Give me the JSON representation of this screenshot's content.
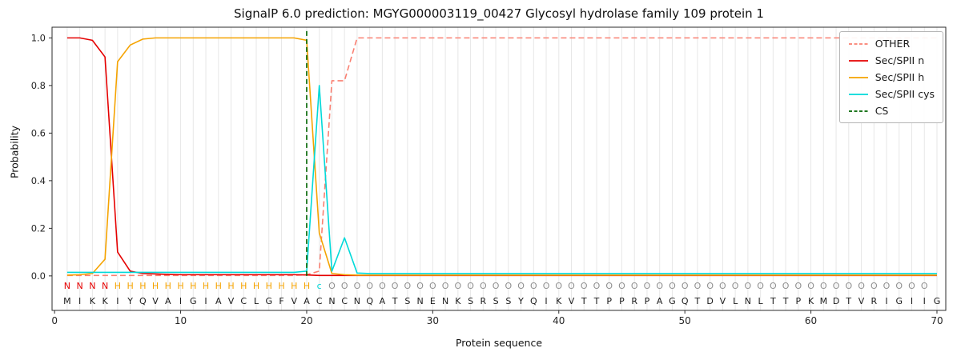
{
  "chart_data": {
    "type": "line",
    "title": "SignalP 6.0 prediction: MGYG000003119_00427 Glycosyl hydrolase family 109 protein 1",
    "xlabel": "Protein sequence",
    "ylabel": "Probability",
    "xlim": [
      -0.2,
      70.7
    ],
    "ylim": [
      -0.145,
      1.045
    ],
    "x_start": 1,
    "x_ticks": [
      0,
      10,
      20,
      30,
      40,
      50,
      60,
      70
    ],
    "y_ticks": [
      0.0,
      0.2,
      0.4,
      0.6,
      0.8,
      1.0
    ],
    "grid": "vertical line per residue",
    "legend_position": "upper right",
    "colors": {
      "grid": "#e7e7e7",
      "spine": "#2b2b2b",
      "tick_label": "#262626",
      "sequence_letters": "#1a1a1a"
    },
    "sequence": "MIKKIYQVAIGIAVCLGFVACNCNQATSNENKSRSSYQIKVTTPPRPAGQTDVLNLTTPKMDTVRIGIIG",
    "annotation": "NNNNHHHHHHHHHHHHHHHHcOOOOOOOOOOOOOOOOOOOOOOOOOOOOOOOOOOOOOOOOOOOOOOOO",
    "annotation_colors": {
      "N": "#e50000",
      "H": "#f5a300",
      "c": "#00d9d9",
      "O": "#8f8f8f"
    },
    "cs_line": {
      "x": 20,
      "color": "#006400",
      "style": "dashed",
      "label": "CS"
    },
    "series": [
      {
        "name": "OTHER",
        "color": "#fa8072",
        "style": "dashed",
        "values": [
          0.002,
          0.002,
          0.002,
          0.002,
          0.002,
          0.002,
          0.002,
          0.002,
          0.002,
          0.002,
          0.002,
          0.002,
          0.002,
          0.002,
          0.002,
          0.002,
          0.002,
          0.002,
          0.002,
          0.005,
          0.02,
          0.82,
          0.82,
          1.0,
          1.0,
          1.0,
          1.0,
          1.0,
          1.0,
          1.0,
          1.0,
          1.0,
          1.0,
          1.0,
          1.0,
          1.0,
          1.0,
          1.0,
          1.0,
          1.0,
          1.0,
          1.0,
          1.0,
          1.0,
          1.0,
          1.0,
          1.0,
          1.0,
          1.0,
          1.0,
          1.0,
          1.0,
          1.0,
          1.0,
          1.0,
          1.0,
          1.0,
          1.0,
          1.0,
          1.0,
          1.0,
          1.0,
          1.0,
          1.0,
          1.0,
          1.0,
          1.0,
          1.0,
          1.0,
          1.0
        ]
      },
      {
        "name": "Sec/SPII n",
        "color": "#e50000",
        "style": "solid",
        "values": [
          1.0,
          1.0,
          0.99,
          0.92,
          0.1,
          0.02,
          0.01,
          0.008,
          0.006,
          0.005,
          0.005,
          0.005,
          0.005,
          0.005,
          0.005,
          0.005,
          0.005,
          0.005,
          0.005,
          0.004,
          0.002,
          0.002,
          0.002,
          0.002,
          0.002,
          0.002,
          0.002,
          0.002,
          0.002,
          0.002,
          0.002,
          0.002,
          0.002,
          0.002,
          0.002,
          0.002,
          0.002,
          0.002,
          0.002,
          0.002,
          0.002,
          0.002,
          0.002,
          0.002,
          0.002,
          0.002,
          0.002,
          0.002,
          0.002,
          0.002,
          0.002,
          0.002,
          0.002,
          0.002,
          0.002,
          0.002,
          0.002,
          0.002,
          0.002,
          0.002,
          0.002,
          0.002,
          0.002,
          0.002,
          0.002,
          0.002,
          0.002,
          0.002,
          0.002,
          0.002
        ]
      },
      {
        "name": "Sec/SPII h",
        "color": "#f5a300",
        "style": "solid",
        "values": [
          0.003,
          0.005,
          0.01,
          0.07,
          0.9,
          0.97,
          0.995,
          1.0,
          1.0,
          1.0,
          1.0,
          1.0,
          1.0,
          1.0,
          1.0,
          1.0,
          1.0,
          1.0,
          1.0,
          0.99,
          0.18,
          0.01,
          0.005,
          0.003,
          0.003,
          0.003,
          0.003,
          0.003,
          0.003,
          0.003,
          0.003,
          0.003,
          0.003,
          0.003,
          0.003,
          0.003,
          0.003,
          0.003,
          0.003,
          0.003,
          0.003,
          0.003,
          0.003,
          0.003,
          0.003,
          0.003,
          0.003,
          0.003,
          0.003,
          0.003,
          0.003,
          0.003,
          0.003,
          0.003,
          0.003,
          0.003,
          0.003,
          0.003,
          0.003,
          0.003,
          0.003,
          0.003,
          0.003,
          0.003,
          0.003,
          0.003,
          0.003,
          0.003,
          0.003,
          0.003
        ]
      },
      {
        "name": "Sec/SPII cys",
        "color": "#00d9d9",
        "style": "solid",
        "values": [
          0.015,
          0.015,
          0.015,
          0.015,
          0.015,
          0.015,
          0.015,
          0.015,
          0.015,
          0.015,
          0.015,
          0.015,
          0.015,
          0.015,
          0.015,
          0.015,
          0.015,
          0.015,
          0.015,
          0.02,
          0.8,
          0.02,
          0.16,
          0.012,
          0.01,
          0.01,
          0.01,
          0.01,
          0.01,
          0.01,
          0.01,
          0.01,
          0.01,
          0.01,
          0.01,
          0.01,
          0.01,
          0.01,
          0.01,
          0.01,
          0.01,
          0.01,
          0.01,
          0.01,
          0.01,
          0.01,
          0.01,
          0.01,
          0.01,
          0.01,
          0.01,
          0.01,
          0.01,
          0.01,
          0.01,
          0.01,
          0.01,
          0.01,
          0.01,
          0.01,
          0.01,
          0.01,
          0.01,
          0.01,
          0.01,
          0.01,
          0.01,
          0.01,
          0.01,
          0.01
        ]
      }
    ]
  }
}
